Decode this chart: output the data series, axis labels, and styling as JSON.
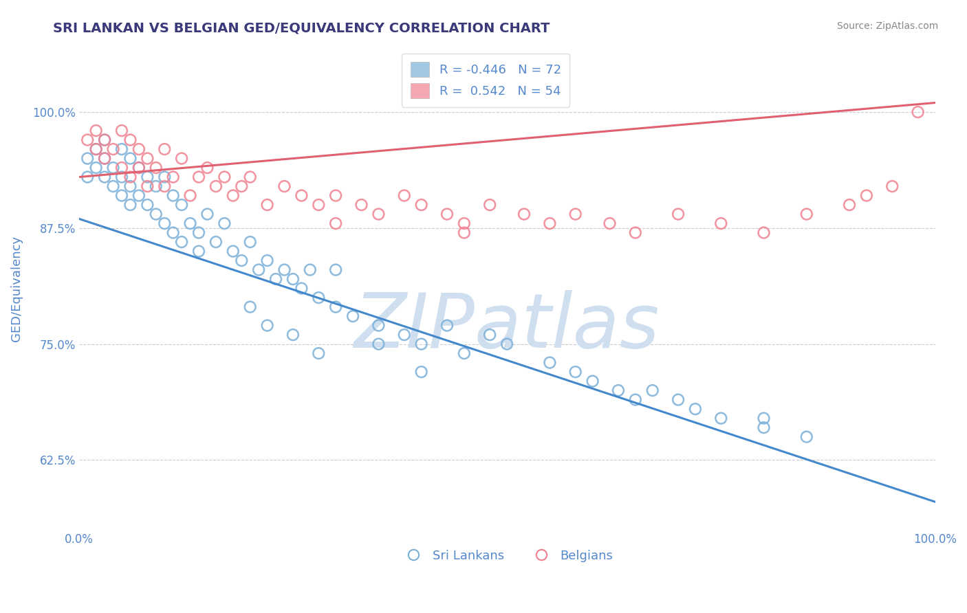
{
  "title": "SRI LANKAN VS BELGIAN GED/EQUIVALENCY CORRELATION CHART",
  "source_text": "Source: ZipAtlas.com",
  "ylabel": "GED/Equivalency",
  "x_range": [
    0.0,
    100.0
  ],
  "y_range": [
    55.0,
    107.0
  ],
  "y_ticks": [
    62.5,
    75.0,
    87.5,
    100.0
  ],
  "sri_lankan_color": "#7ab0d8",
  "belgian_color": "#f08090",
  "sri_lankan_line_color": "#4488cc",
  "belgian_line_color": "#e06070",
  "watermark_color": "#d0dff0",
  "title_color": "#3a3a7a",
  "axis_label_color": "#5588cc",
  "source_color": "#888888",
  "background_color": "#ffffff",
  "grid_color": "#cccccc",
  "sri_lankans": {
    "x": [
      1,
      1,
      2,
      2,
      3,
      3,
      3,
      4,
      4,
      5,
      5,
      5,
      6,
      6,
      6,
      7,
      7,
      8,
      8,
      9,
      9,
      10,
      10,
      11,
      11,
      12,
      12,
      13,
      14,
      14,
      15,
      16,
      17,
      18,
      19,
      20,
      21,
      22,
      23,
      24,
      25,
      26,
      27,
      28,
      30,
      32,
      35,
      38,
      40,
      43,
      45,
      48,
      50,
      55,
      58,
      60,
      63,
      65,
      67,
      70,
      72,
      75,
      80,
      85,
      20,
      22,
      25,
      28,
      30,
      35,
      40,
      80
    ],
    "y": [
      95,
      93,
      96,
      94,
      97,
      95,
      93,
      94,
      92,
      96,
      93,
      91,
      95,
      92,
      90,
      94,
      91,
      93,
      90,
      92,
      89,
      93,
      88,
      91,
      87,
      90,
      86,
      88,
      87,
      85,
      89,
      86,
      88,
      85,
      84,
      86,
      83,
      84,
      82,
      83,
      82,
      81,
      83,
      80,
      79,
      78,
      77,
      76,
      75,
      77,
      74,
      76,
      75,
      73,
      72,
      71,
      70,
      69,
      70,
      69,
      68,
      67,
      66,
      65,
      79,
      77,
      76,
      74,
      83,
      75,
      72,
      67
    ],
    "R": -0.446,
    "N": 72,
    "line_x": [
      0,
      100
    ],
    "line_y": [
      88.5,
      58.0
    ]
  },
  "belgians": {
    "x": [
      1,
      2,
      2,
      3,
      3,
      4,
      5,
      5,
      6,
      6,
      7,
      7,
      8,
      8,
      9,
      10,
      10,
      11,
      12,
      13,
      14,
      15,
      16,
      17,
      18,
      19,
      20,
      22,
      24,
      26,
      28,
      30,
      33,
      35,
      38,
      40,
      43,
      45,
      48,
      52,
      55,
      58,
      62,
      65,
      70,
      75,
      80,
      85,
      90,
      92,
      95,
      98,
      30,
      45
    ],
    "y": [
      97,
      98,
      96,
      97,
      95,
      96,
      98,
      94,
      97,
      93,
      96,
      94,
      95,
      92,
      94,
      96,
      92,
      93,
      95,
      91,
      93,
      94,
      92,
      93,
      91,
      92,
      93,
      90,
      92,
      91,
      90,
      91,
      90,
      89,
      91,
      90,
      89,
      88,
      90,
      89,
      88,
      89,
      88,
      87,
      89,
      88,
      87,
      89,
      90,
      91,
      92,
      100,
      88,
      87
    ],
    "R": 0.542,
    "N": 54,
    "line_x": [
      0,
      100
    ],
    "line_y": [
      93.0,
      101.0
    ]
  }
}
